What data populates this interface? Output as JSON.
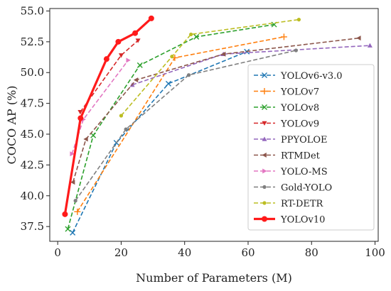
{
  "chart_data": {
    "type": "line",
    "xlabel": "Number of Parameters (M)",
    "ylabel": "COCO AP (%)",
    "xlim": [
      -2.5,
      101
    ],
    "ylim": [
      36.3,
      55.2
    ],
    "xticks": [
      0,
      20,
      40,
      60,
      80,
      100
    ],
    "yticks": [
      37.5,
      40.0,
      42.5,
      45.0,
      47.5,
      50.0,
      52.5,
      55.0
    ],
    "legend_position": "right",
    "grid": false,
    "series": [
      {
        "name": "YOLOv6-v3.0",
        "color": "#1f77b4",
        "marker": "x",
        "dash": true,
        "x": [
          4.7,
          18.5,
          34.9,
          59.6
        ],
        "y": [
          37.0,
          44.3,
          49.1,
          51.7
        ]
      },
      {
        "name": "YOLOv7",
        "color": "#ff7f0e",
        "marker": "plus",
        "dash": true,
        "x": [
          6.2,
          36.9,
          71.3
        ],
        "y": [
          38.7,
          51.2,
          52.9
        ]
      },
      {
        "name": "YOLOv8",
        "color": "#2ca02c",
        "marker": "x",
        "dash": true,
        "x": [
          3.2,
          11.2,
          25.9,
          43.7,
          68.2
        ],
        "y": [
          37.3,
          44.9,
          50.6,
          52.9,
          53.9
        ]
      },
      {
        "name": "YOLOv9",
        "color": "#d62728",
        "marker": "tri-down",
        "dash": true,
        "x": [
          7.1,
          20.0,
          25.3
        ],
        "y": [
          46.8,
          51.4,
          52.6
        ]
      },
      {
        "name": "PPYOLOE",
        "color": "#9467bd",
        "marker": "tri-up",
        "dash": true,
        "x": [
          23.5,
          52.2,
          98.4
        ],
        "y": [
          49.0,
          51.5,
          52.2
        ]
      },
      {
        "name": "RTMDet",
        "color": "#8c564b",
        "marker": "tri-left",
        "dash": true,
        "x": [
          4.8,
          8.9,
          24.7,
          52.3,
          94.9
        ],
        "y": [
          41.1,
          44.6,
          49.4,
          51.5,
          52.8
        ]
      },
      {
        "name": "YOLO-MS",
        "color": "#e377c2",
        "marker": "tri-right",
        "dash": true,
        "x": [
          4.5,
          8.1,
          22.2
        ],
        "y": [
          43.4,
          46.2,
          51.0
        ]
      },
      {
        "name": "Gold-YOLO",
        "color": "#7f7f7f",
        "marker": "dot",
        "dash": true,
        "x": [
          5.6,
          21.5,
          41.3,
          75.1
        ],
        "y": [
          39.6,
          45.4,
          49.8,
          51.8
        ]
      },
      {
        "name": "RT-DETR",
        "color": "#bcbd22",
        "marker": "dot",
        "dash": true,
        "x": [
          20.0,
          36.0,
          42.0,
          76.0
        ],
        "y": [
          46.5,
          51.3,
          53.1,
          54.3
        ]
      },
      {
        "name": "YOLOv10",
        "color": "#ff1a1a",
        "marker": "bigdot",
        "dash": false,
        "x": [
          2.3,
          7.2,
          15.4,
          19.1,
          24.4,
          29.5
        ],
        "y": [
          38.5,
          46.3,
          51.1,
          52.5,
          53.2,
          54.4
        ]
      }
    ]
  }
}
